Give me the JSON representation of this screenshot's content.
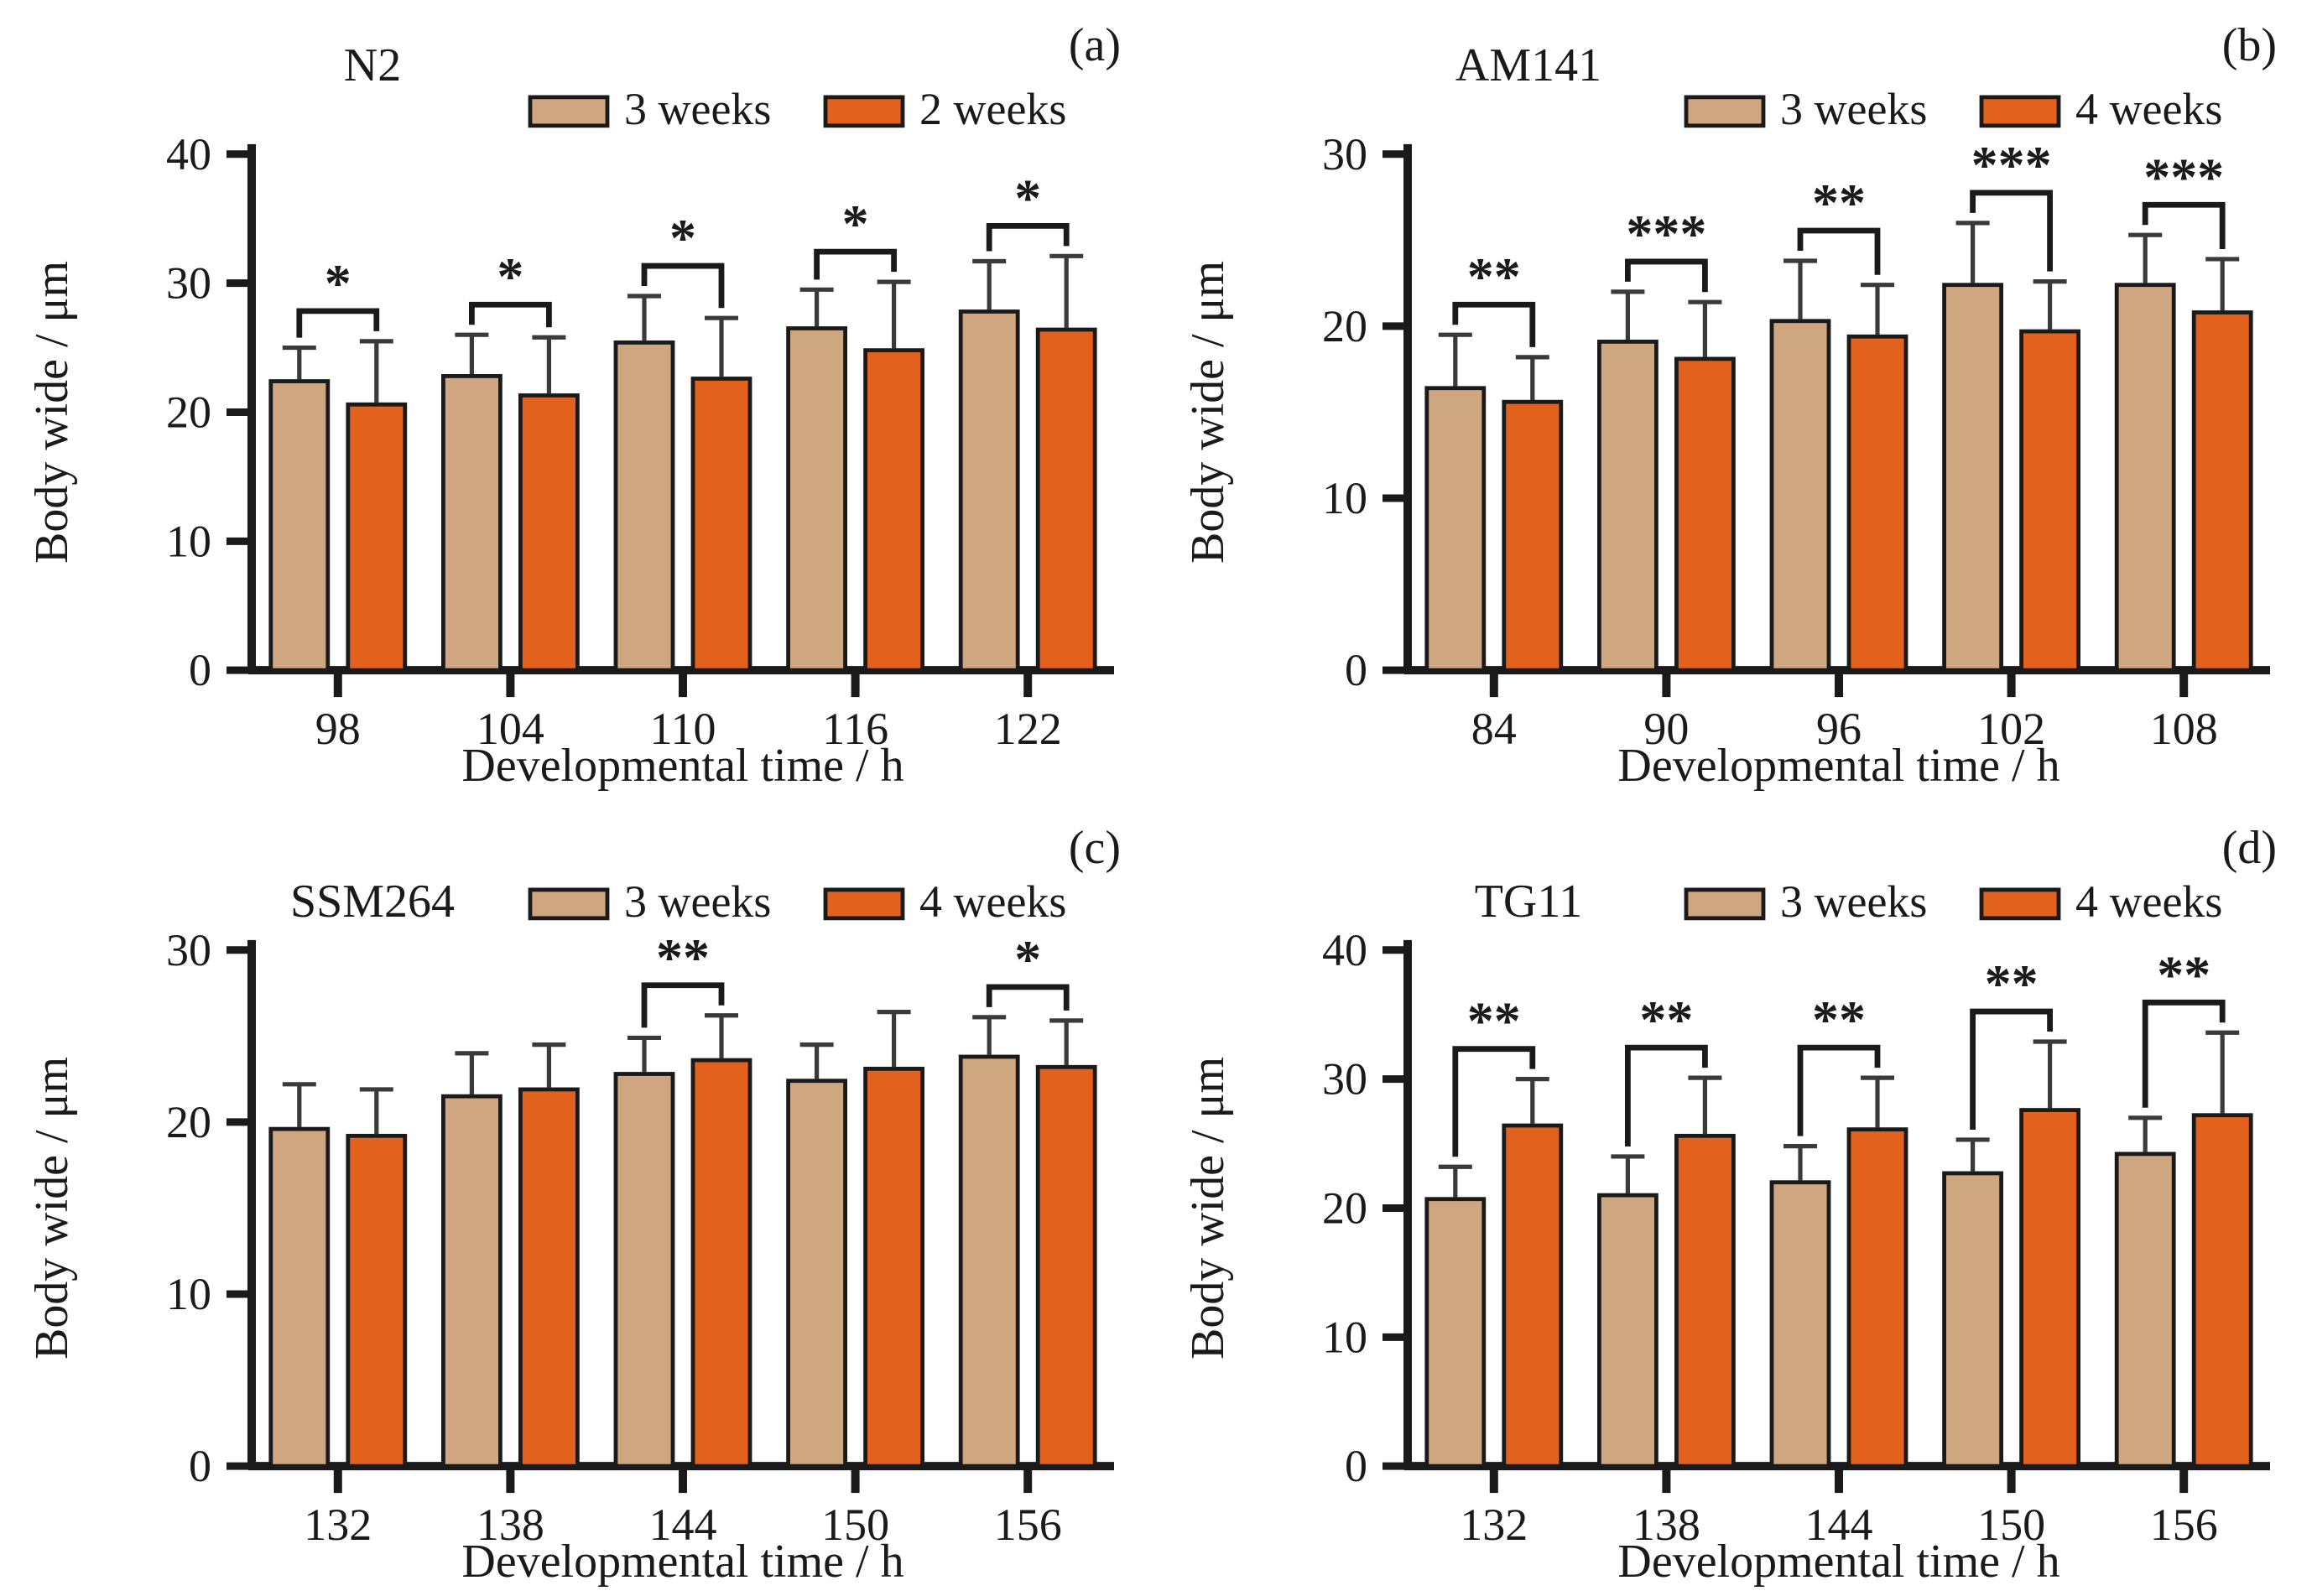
{
  "figure": {
    "background": "#ffffff",
    "axis_color": "#1a1a1a",
    "bar_stroke_color": "#1a1a1a",
    "error_bar_color": "#3a3a3a",
    "significance_color": "#1a1a1a",
    "tan_color": "#CEA781",
    "orange_color": "#E2611D"
  },
  "chart_data": [
    {
      "id": "a",
      "panel_letter": "(a)",
      "title": "N2",
      "type": "bar",
      "xlabel": "Developmental time / h",
      "ylabel": "Body wide / μm",
      "categories": [
        "98",
        "104",
        "110",
        "116",
        "122"
      ],
      "ylim": [
        0,
        40
      ],
      "ytick_step": 10,
      "grid": false,
      "legend_position": "top-right",
      "series": [
        {
          "name": "3 weeks",
          "color": "#CEA781",
          "values": [
            22.4,
            22.8,
            25.4,
            26.5,
            27.8
          ],
          "errors": [
            2.6,
            3.2,
            3.6,
            3.0,
            3.9
          ]
        },
        {
          "name": "2 weeks",
          "color": "#E2611D",
          "values": [
            20.6,
            21.3,
            22.6,
            24.8,
            26.4
          ],
          "errors": [
            4.9,
            4.5,
            4.7,
            5.3,
            5.7
          ]
        }
      ],
      "significance": [
        "*",
        "*",
        "*",
        "*",
        "*"
      ]
    },
    {
      "id": "b",
      "panel_letter": "(b)",
      "title": "AM141",
      "type": "bar",
      "xlabel": "Developmental time / h",
      "ylabel": "Body wide / μm",
      "categories": [
        "84",
        "90",
        "96",
        "102",
        "108"
      ],
      "ylim": [
        0,
        30
      ],
      "ytick_step": 10,
      "grid": false,
      "legend_position": "top-right",
      "series": [
        {
          "name": "3 weeks",
          "color": "#CEA781",
          "values": [
            16.4,
            19.1,
            20.3,
            22.4,
            22.4
          ],
          "errors": [
            3.1,
            2.9,
            3.5,
            3.6,
            2.9
          ]
        },
        {
          "name": "4 weeks",
          "color": "#E2611D",
          "values": [
            15.6,
            18.1,
            19.4,
            19.7,
            20.8
          ],
          "errors": [
            2.6,
            3.3,
            3.0,
            2.9,
            3.1
          ]
        }
      ],
      "significance": [
        "**",
        "***",
        "**",
        "***",
        "***"
      ]
    },
    {
      "id": "c",
      "panel_letter": "(c)",
      "title": "SSM264",
      "type": "bar",
      "xlabel": "Developmental time / h",
      "ylabel": "Body wide / μm",
      "categories": [
        "132",
        "138",
        "144",
        "150",
        "156"
      ],
      "ylim": [
        0,
        30
      ],
      "ytick_step": 10,
      "grid": false,
      "legend_position": "top-right",
      "series": [
        {
          "name": "3 weeks",
          "color": "#CEA781",
          "values": [
            19.6,
            21.5,
            22.8,
            22.4,
            23.8
          ],
          "errors": [
            2.6,
            2.5,
            2.1,
            2.1,
            2.3
          ]
        },
        {
          "name": "4 weeks",
          "color": "#E2611D",
          "values": [
            19.2,
            21.9,
            23.6,
            23.1,
            23.2
          ],
          "errors": [
            2.7,
            2.6,
            2.6,
            3.3,
            2.7
          ]
        }
      ],
      "significance": [
        null,
        null,
        "**",
        null,
        "*"
      ]
    },
    {
      "id": "d",
      "panel_letter": "(d)",
      "title": "TG11",
      "type": "bar",
      "xlabel": "Developmental time / h",
      "ylabel": "Body wide / μm",
      "categories": [
        "132",
        "138",
        "144",
        "150",
        "156"
      ],
      "ylim": [
        0,
        40
      ],
      "ytick_step": 10,
      "grid": false,
      "legend_position": "top-right",
      "series": [
        {
          "name": "3 weeks",
          "color": "#CEA781",
          "values": [
            20.7,
            21.0,
            22.0,
            22.7,
            24.2
          ],
          "errors": [
            2.5,
            3.0,
            2.8,
            2.6,
            2.8
          ]
        },
        {
          "name": "4 weeks",
          "color": "#E2611D",
          "values": [
            26.4,
            25.6,
            26.1,
            27.6,
            27.2
          ],
          "errors": [
            3.6,
            4.5,
            4.0,
            5.3,
            6.4
          ]
        }
      ],
      "significance": [
        "**",
        "**",
        "**",
        "**",
        "**"
      ]
    }
  ]
}
